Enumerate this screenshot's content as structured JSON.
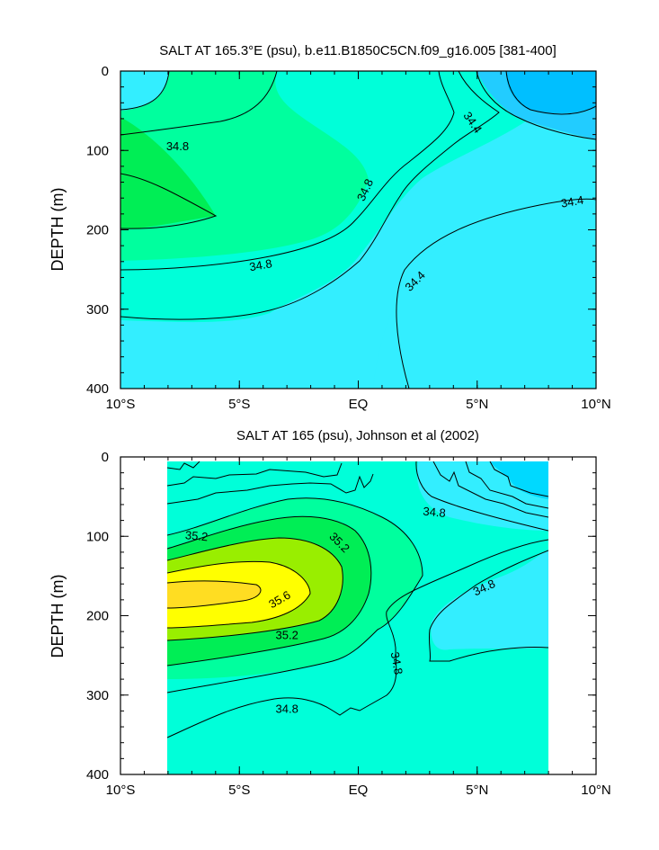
{
  "chart_data": [
    {
      "type": "contour",
      "title": "SALT AT 165.3°E (psu), b.e11.B1850C5CN.f09_g16.005 [381-400]",
      "ylabel": "DEPTH (m)",
      "xlabel": "",
      "x_tick_labels": [
        "10°S",
        "5°S",
        "EQ",
        "5°N",
        "10°N"
      ],
      "x_ticks": [
        -10,
        -5,
        0,
        5,
        10
      ],
      "xlim": [
        -10,
        10
      ],
      "y_tick_labels": [
        "0",
        "100",
        "200",
        "300",
        "400"
      ],
      "y_ticks": [
        0,
        100,
        200,
        300,
        400
      ],
      "ylim": [
        0,
        400
      ],
      "contour_interval": 0.2,
      "contour_labels": [
        {
          "text": "34.8",
          "lat": -7.6,
          "depth": 95,
          "angle": 0
        },
        {
          "text": "34.4",
          "lat": 4.8,
          "depth": 65,
          "angle": 55
        },
        {
          "text": "34.8",
          "lat": 0.3,
          "depth": 150,
          "angle": -65
        },
        {
          "text": "34.4",
          "lat": 9.0,
          "depth": 165,
          "angle": -10
        },
        {
          "text": "34.8",
          "lat": -4.1,
          "depth": 245,
          "angle": -10
        },
        {
          "text": "34.4",
          "lat": 2.4,
          "depth": 265,
          "angle": -45
        }
      ],
      "fill_colors": [
        "#00bfff",
        "#33eeff",
        "#00ffd9",
        "#00ff9e",
        "#00ee55"
      ]
    },
    {
      "type": "contour",
      "title": "SALT AT 165 (psu), Johnson et al (2002)",
      "ylabel": "DEPTH (m)",
      "xlabel": "",
      "x_tick_labels": [
        "10°S",
        "5°S",
        "EQ",
        "5°N",
        "10°N"
      ],
      "x_ticks": [
        -10,
        -5,
        0,
        5,
        10
      ],
      "xlim": [
        -10,
        10
      ],
      "y_tick_labels": [
        "0",
        "100",
        "200",
        "300",
        "400"
      ],
      "y_ticks": [
        0,
        100,
        200,
        300,
        400
      ],
      "ylim": [
        0,
        400
      ],
      "data_extent_lat": [
        -8,
        8
      ],
      "contour_interval": 0.2,
      "contour_labels": [
        {
          "text": "35.2",
          "lat": -6.8,
          "depth": 100,
          "angle": 5
        },
        {
          "text": "35.2",
          "lat": -0.8,
          "depth": 108,
          "angle": 45
        },
        {
          "text": "34.8",
          "lat": 3.2,
          "depth": 70,
          "angle": 5
        },
        {
          "text": "35.6",
          "lat": -3.3,
          "depth": 180,
          "angle": -30
        },
        {
          "text": "34.8",
          "lat": 5.3,
          "depth": 165,
          "angle": -25
        },
        {
          "text": "35.2",
          "lat": -3.0,
          "depth": 225,
          "angle": 0
        },
        {
          "text": "34.8",
          "lat": 1.6,
          "depth": 260,
          "angle": 80
        },
        {
          "text": "34.8",
          "lat": -3.0,
          "depth": 318,
          "angle": 0
        }
      ],
      "fill_colors": [
        "#00d9ff",
        "#33eeff",
        "#00ffd9",
        "#00ff9e",
        "#00ee55",
        "#99ee00",
        "#ffff00",
        "#ffdd22"
      ]
    }
  ]
}
